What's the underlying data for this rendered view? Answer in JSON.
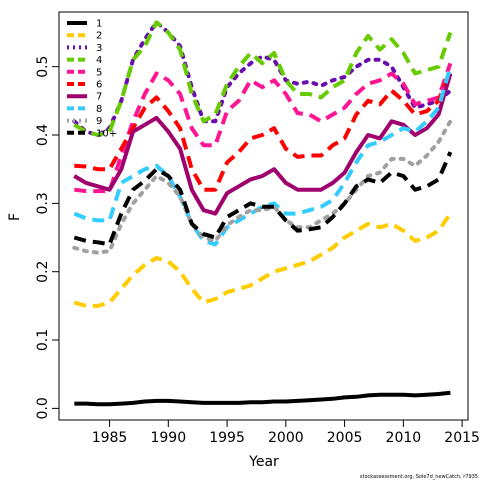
{
  "chart_data": {
    "type": "line",
    "xlabel": "Year",
    "ylabel": "F",
    "footnote": "stockassessment.org, Sole7d_newCatch, r7935",
    "xlim": [
      1980.7,
      2015.5
    ],
    "ylim": [
      -0.017,
      0.58
    ],
    "xticks": [
      1985,
      1990,
      1995,
      2000,
      2005,
      2010,
      2015
    ],
    "yticks": [
      0.0,
      0.1,
      0.2,
      0.3,
      0.4,
      0.5
    ],
    "ytick_labels": [
      "0.0",
      "0.1",
      "0.2",
      "0.3",
      "0.4",
      "0.5"
    ],
    "x": [
      1982,
      1983,
      1984,
      1985,
      1986,
      1987,
      1988,
      1989,
      1990,
      1991,
      1992,
      1993,
      1994,
      1995,
      1996,
      1997,
      1998,
      1999,
      2000,
      2001,
      2002,
      2003,
      2004,
      2005,
      2006,
      2007,
      2008,
      2009,
      2010,
      2011,
      2012,
      2013,
      2014
    ],
    "legend_placement": "top-left",
    "series": [
      {
        "name": "1",
        "color": "#000000",
        "dash": "solid",
        "values": [
          0.007,
          0.007,
          0.006,
          0.006,
          0.007,
          0.008,
          0.01,
          0.011,
          0.011,
          0.01,
          0.009,
          0.008,
          0.008,
          0.008,
          0.008,
          0.009,
          0.009,
          0.01,
          0.01,
          0.011,
          0.012,
          0.013,
          0.014,
          0.016,
          0.017,
          0.019,
          0.02,
          0.02,
          0.02,
          0.019,
          0.02,
          0.021,
          0.023
        ]
      },
      {
        "name": "2",
        "color": "#ffcc00",
        "dash": "dash",
        "values": [
          0.155,
          0.15,
          0.15,
          0.155,
          0.175,
          0.195,
          0.21,
          0.22,
          0.215,
          0.2,
          0.175,
          0.155,
          0.16,
          0.17,
          0.175,
          0.18,
          0.19,
          0.2,
          0.205,
          0.21,
          0.215,
          0.225,
          0.235,
          0.25,
          0.26,
          0.27,
          0.265,
          0.27,
          0.26,
          0.245,
          0.25,
          0.26,
          0.285
        ]
      },
      {
        "name": "3",
        "color": "#6a0dad",
        "dash": "dot",
        "values": [
          0.42,
          0.405,
          0.4,
          0.41,
          0.45,
          0.51,
          0.54,
          0.565,
          0.55,
          0.53,
          0.47,
          0.42,
          0.42,
          0.47,
          0.49,
          0.505,
          0.515,
          0.51,
          0.48,
          0.475,
          0.478,
          0.472,
          0.48,
          0.485,
          0.5,
          0.51,
          0.51,
          0.5,
          0.47,
          0.44,
          0.445,
          0.45,
          0.465
        ]
      },
      {
        "name": "4",
        "color": "#66cc00",
        "dash": "dash",
        "values": [
          0.415,
          0.405,
          0.4,
          0.405,
          0.45,
          0.51,
          0.53,
          0.565,
          0.55,
          0.525,
          0.46,
          0.42,
          0.43,
          0.475,
          0.5,
          0.52,
          0.505,
          0.52,
          0.48,
          0.46,
          0.46,
          0.455,
          0.47,
          0.48,
          0.52,
          0.545,
          0.525,
          0.54,
          0.52,
          0.49,
          0.495,
          0.5,
          0.55
        ]
      },
      {
        "name": "5",
        "color": "#ff1493",
        "dash": "dash",
        "values": [
          0.32,
          0.318,
          0.318,
          0.318,
          0.37,
          0.42,
          0.46,
          0.49,
          0.48,
          0.46,
          0.41,
          0.385,
          0.385,
          0.435,
          0.45,
          0.48,
          0.47,
          0.48,
          0.46,
          0.432,
          0.43,
          0.42,
          0.43,
          0.44,
          0.46,
          0.475,
          0.48,
          0.49,
          0.475,
          0.445,
          0.45,
          0.455,
          0.505
        ]
      },
      {
        "name": "6",
        "color": "#ff0000",
        "dash": "dash",
        "values": [
          0.355,
          0.354,
          0.35,
          0.35,
          0.38,
          0.41,
          0.44,
          0.455,
          0.435,
          0.41,
          0.35,
          0.32,
          0.32,
          0.36,
          0.375,
          0.395,
          0.4,
          0.41,
          0.38,
          0.368,
          0.37,
          0.37,
          0.385,
          0.395,
          0.43,
          0.45,
          0.445,
          0.465,
          0.45,
          0.43,
          0.435,
          0.45,
          0.495
        ]
      },
      {
        "name": "7",
        "color": "#a0006e",
        "dash": "solid",
        "values": [
          0.34,
          0.33,
          0.325,
          0.32,
          0.35,
          0.405,
          0.415,
          0.425,
          0.405,
          0.38,
          0.32,
          0.29,
          0.285,
          0.315,
          0.325,
          0.335,
          0.34,
          0.35,
          0.33,
          0.32,
          0.32,
          0.32,
          0.33,
          0.345,
          0.375,
          0.4,
          0.395,
          0.42,
          0.415,
          0.4,
          0.41,
          0.43,
          0.49
        ]
      },
      {
        "name": "8",
        "color": "#33ccff",
        "dash": "dash",
        "values": [
          0.285,
          0.278,
          0.275,
          0.275,
          0.33,
          0.34,
          0.35,
          0.355,
          0.34,
          0.31,
          0.27,
          0.245,
          0.24,
          0.265,
          0.275,
          0.285,
          0.295,
          0.3,
          0.285,
          0.285,
          0.29,
          0.295,
          0.305,
          0.33,
          0.36,
          0.385,
          0.39,
          0.4,
          0.41,
          0.405,
          0.42,
          0.44,
          0.5
        ]
      },
      {
        "name": "9",
        "color": "#a0a0a0",
        "dash": "dot",
        "values": [
          0.235,
          0.23,
          0.228,
          0.23,
          0.27,
          0.3,
          0.32,
          0.34,
          0.33,
          0.31,
          0.27,
          0.25,
          0.245,
          0.268,
          0.28,
          0.29,
          0.29,
          0.295,
          0.275,
          0.265,
          0.265,
          0.275,
          0.285,
          0.3,
          0.32,
          0.34,
          0.345,
          0.365,
          0.365,
          0.355,
          0.37,
          0.39,
          0.42
        ]
      },
      {
        "name": "10+",
        "color": "#000000",
        "dash": "dash",
        "values": [
          0.25,
          0.245,
          0.243,
          0.24,
          0.285,
          0.32,
          0.333,
          0.35,
          0.34,
          0.32,
          0.27,
          0.255,
          0.25,
          0.28,
          0.29,
          0.3,
          0.295,
          0.295,
          0.275,
          0.26,
          0.262,
          0.265,
          0.28,
          0.3,
          0.325,
          0.335,
          0.33,
          0.345,
          0.34,
          0.32,
          0.325,
          0.335,
          0.375
        ]
      }
    ]
  }
}
